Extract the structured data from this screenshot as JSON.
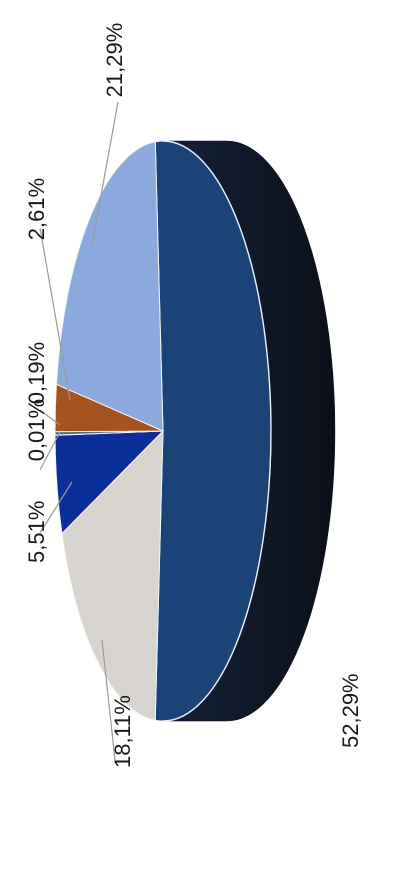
{
  "chart_data": {
    "type": "pie",
    "three_d": true,
    "orientation": "rotated-90-ccw",
    "labels": [
      "52,29%",
      "18,11%",
      "5,51%",
      "0,01%",
      "0,19%",
      "2,61%",
      "21,29%"
    ],
    "values": [
      52.29,
      18.11,
      5.51,
      0.01,
      0.19,
      2.61,
      21.29
    ],
    "colors": [
      "#1b4378",
      "#d7d4d0",
      "#0a2f98",
      "#e6e6e6",
      "#5a6a8a",
      "#a4521e",
      "#8ba9dc"
    ],
    "side_colors": [
      "#14213a",
      "#b4b0ab",
      "#081d60",
      "#bcbcbc",
      "#3c475c",
      "#6e3614",
      "#5d78a8"
    ],
    "legend": "none"
  }
}
